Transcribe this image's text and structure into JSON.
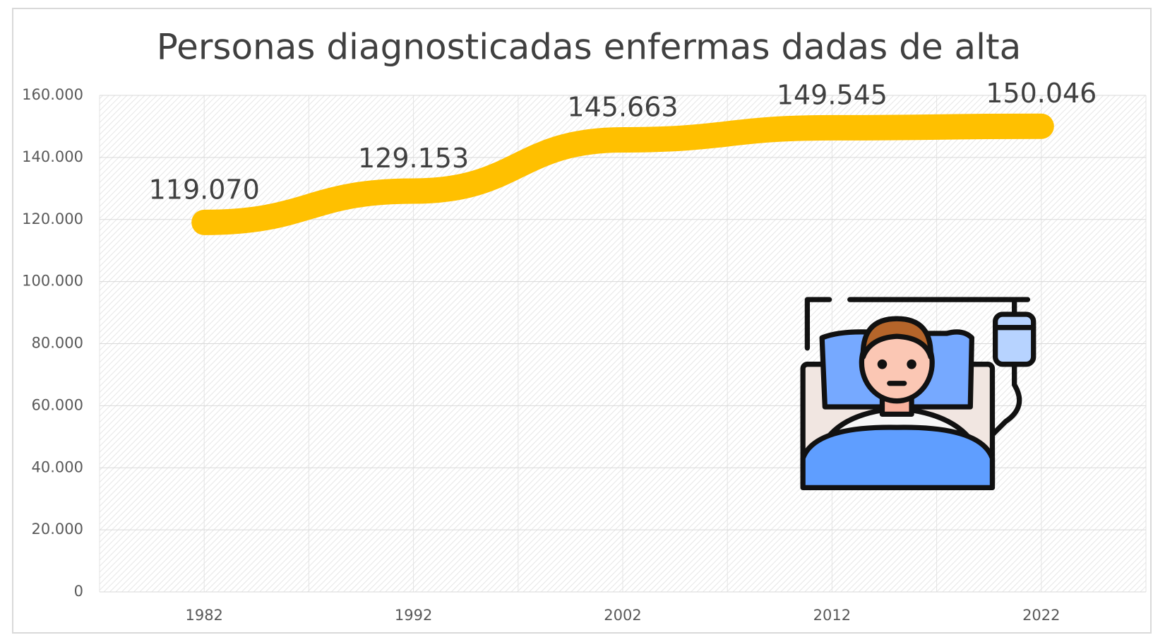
{
  "chart_data": {
    "type": "line",
    "title": "Personas diagnosticadas enfermas dadas de alta",
    "categories": [
      "1982",
      "1992",
      "2002",
      "2012",
      "2022"
    ],
    "values": [
      119070,
      129153,
      145663,
      149545,
      150046
    ],
    "value_labels": [
      "119.070",
      "129.153",
      "145.663",
      "149.545",
      "150.046"
    ],
    "color": "#FFC000",
    "ylim": [
      0,
      160000
    ],
    "yticks": [
      0,
      {
        "value": 20000,
        "label": "20.000"
      },
      {
        "value": 40000,
        "label": "40.000"
      },
      {
        "value": 60000,
        "label": "60.000"
      },
      {
        "value": 80000,
        "label": "80.000"
      },
      {
        "value": 100000,
        "label": "100.000"
      },
      {
        "value": 120000,
        "label": "120.000"
      },
      {
        "value": 140000,
        "label": "140.000"
      },
      {
        "value": 160000,
        "label": "160.000"
      }
    ],
    "grid": true
  }
}
